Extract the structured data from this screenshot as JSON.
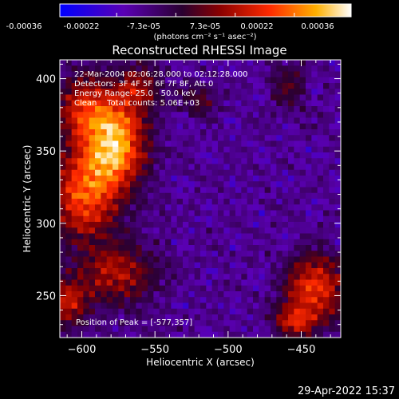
{
  "colorbar": {
    "ticks": [
      "-0.00036",
      "-0.00022",
      "-7.3e-05",
      "7.3e-05",
      "0.00022",
      "0.00036"
    ],
    "unit_label": "(photons cm⁻² s⁻¹ asec⁻²)"
  },
  "chart_data": {
    "type": "heatmap",
    "title": "Reconstructed RHESSI Image",
    "xlabel": "Heliocentric X (arcsec)",
    "ylabel": "Heliocentric Y (arcsec)",
    "xlim": [
      -615,
      -423
    ],
    "ylim": [
      221,
      413
    ],
    "xticks": [
      -600,
      -550,
      -500,
      -450
    ],
    "yticks": [
      250,
      300,
      350,
      400
    ],
    "value_range": [
      -0.00036,
      0.00036
    ],
    "colormap": [
      "#0000ff",
      "#5a00b4",
      "#2a0030",
      "#8a0000",
      "#ff2a00",
      "#ffb000",
      "#ffffff"
    ],
    "grid": false,
    "annotations": [
      "22-Mar-2004 02:06:28.000 to 02:12:28.000",
      "Detectors: 3F 4F 5F 6F 7F 8F, Att 0",
      "Energy Range: 25.0 - 50.0 keV",
      "Clean    Total counts: 5.06E+03"
    ],
    "peak_label": "Position of Peak = [-577,357]",
    "peak": {
      "x": -577,
      "y": 357
    },
    "emission_regions": [
      {
        "x": -577,
        "y": 357,
        "sx": 14,
        "sy": 22,
        "amp": 1.0
      },
      {
        "x": -598,
        "y": 320,
        "sx": 16,
        "sy": 22,
        "amp": 0.75
      },
      {
        "x": -600,
        "y": 380,
        "sx": 12,
        "sy": 16,
        "amp": 0.55
      },
      {
        "x": -560,
        "y": 395,
        "sx": 10,
        "sy": 10,
        "amp": 0.4
      },
      {
        "x": -575,
        "y": 265,
        "sx": 18,
        "sy": 14,
        "amp": 0.5
      },
      {
        "x": -610,
        "y": 245,
        "sx": 10,
        "sy": 12,
        "amp": 0.55
      },
      {
        "x": -440,
        "y": 255,
        "sx": 14,
        "sy": 16,
        "amp": 0.7
      },
      {
        "x": -455,
        "y": 232,
        "sx": 10,
        "sy": 8,
        "amp": 0.5
      },
      {
        "x": -520,
        "y": 385,
        "sx": 8,
        "sy": 8,
        "amp": 0.3
      },
      {
        "x": -458,
        "y": 395,
        "sx": 8,
        "sy": 12,
        "amp": 0.3
      }
    ]
  },
  "footer_date": "29-Apr-2022 15:37"
}
